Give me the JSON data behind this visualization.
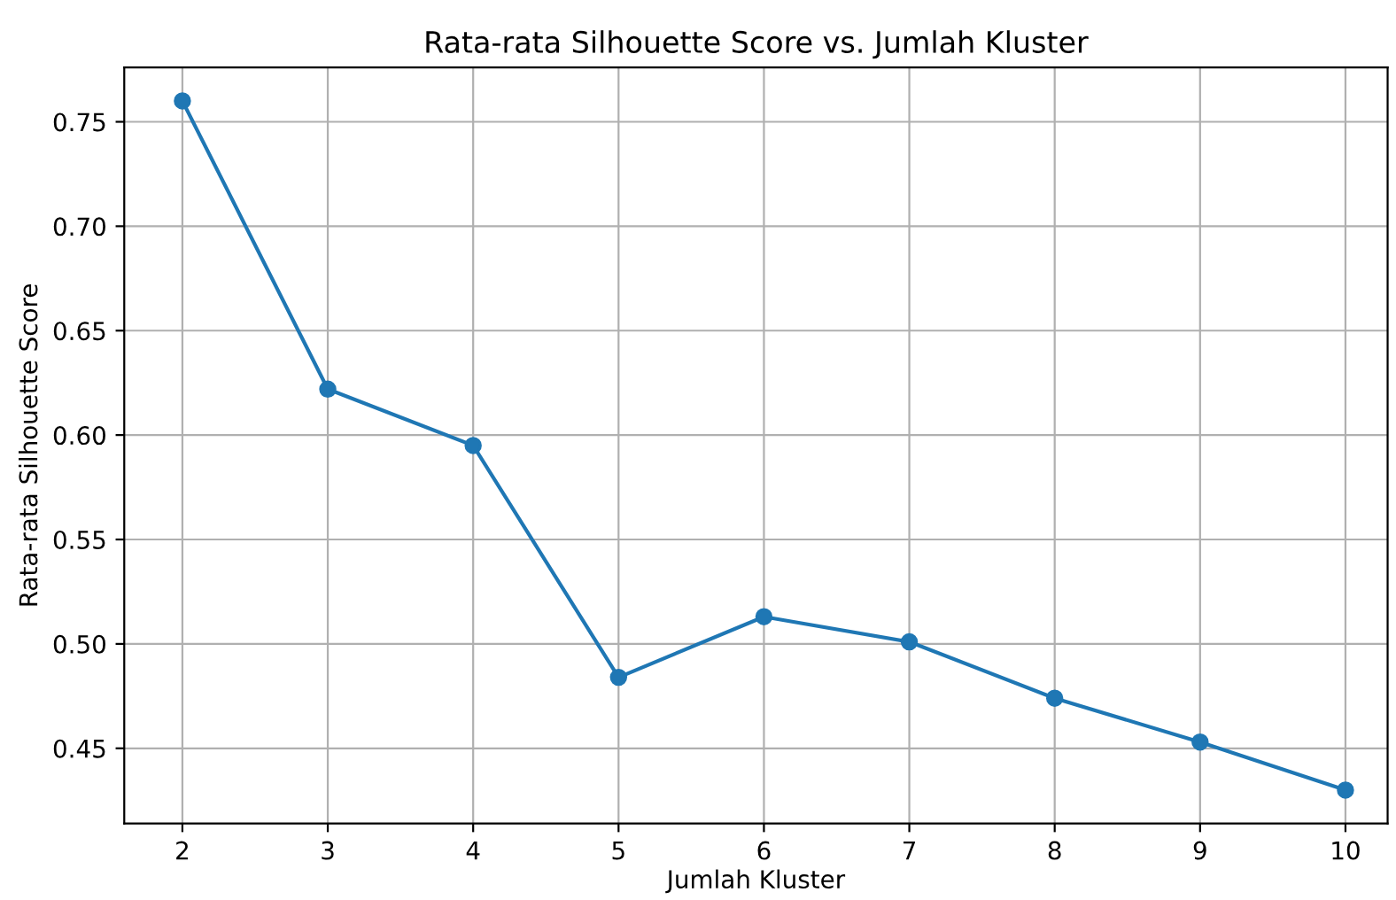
{
  "chart_data": {
    "type": "line",
    "title": "Rata-rata Silhouette Score vs. Jumlah Kluster",
    "xlabel": "Jumlah Kluster",
    "ylabel": "Rata-rata Silhouette Score",
    "x": [
      2,
      3,
      4,
      5,
      6,
      7,
      8,
      9,
      10
    ],
    "series": [
      {
        "color": "#1f77b4",
        "values": [
          0.76,
          0.622,
          0.595,
          0.484,
          0.513,
          0.501,
          0.474,
          0.453,
          0.43
        ]
      }
    ],
    "xlim": [
      1.6,
      10.29
    ],
    "ylim": [
      0.414,
      0.776
    ],
    "xticks": [
      2,
      3,
      4,
      5,
      6,
      7,
      8,
      9,
      10
    ],
    "yticks": [
      {
        "value": 0.45,
        "label": "0.45"
      },
      {
        "value": 0.5,
        "label": "0.50"
      },
      {
        "value": 0.55,
        "label": "0.55"
      },
      {
        "value": 0.6,
        "label": "0.60"
      },
      {
        "value": 0.65,
        "label": "0.65"
      },
      {
        "value": 0.7,
        "label": "0.70"
      },
      {
        "value": 0.75,
        "label": "0.75"
      }
    ],
    "grid": true,
    "marker": "circle",
    "line_style": "solid"
  }
}
